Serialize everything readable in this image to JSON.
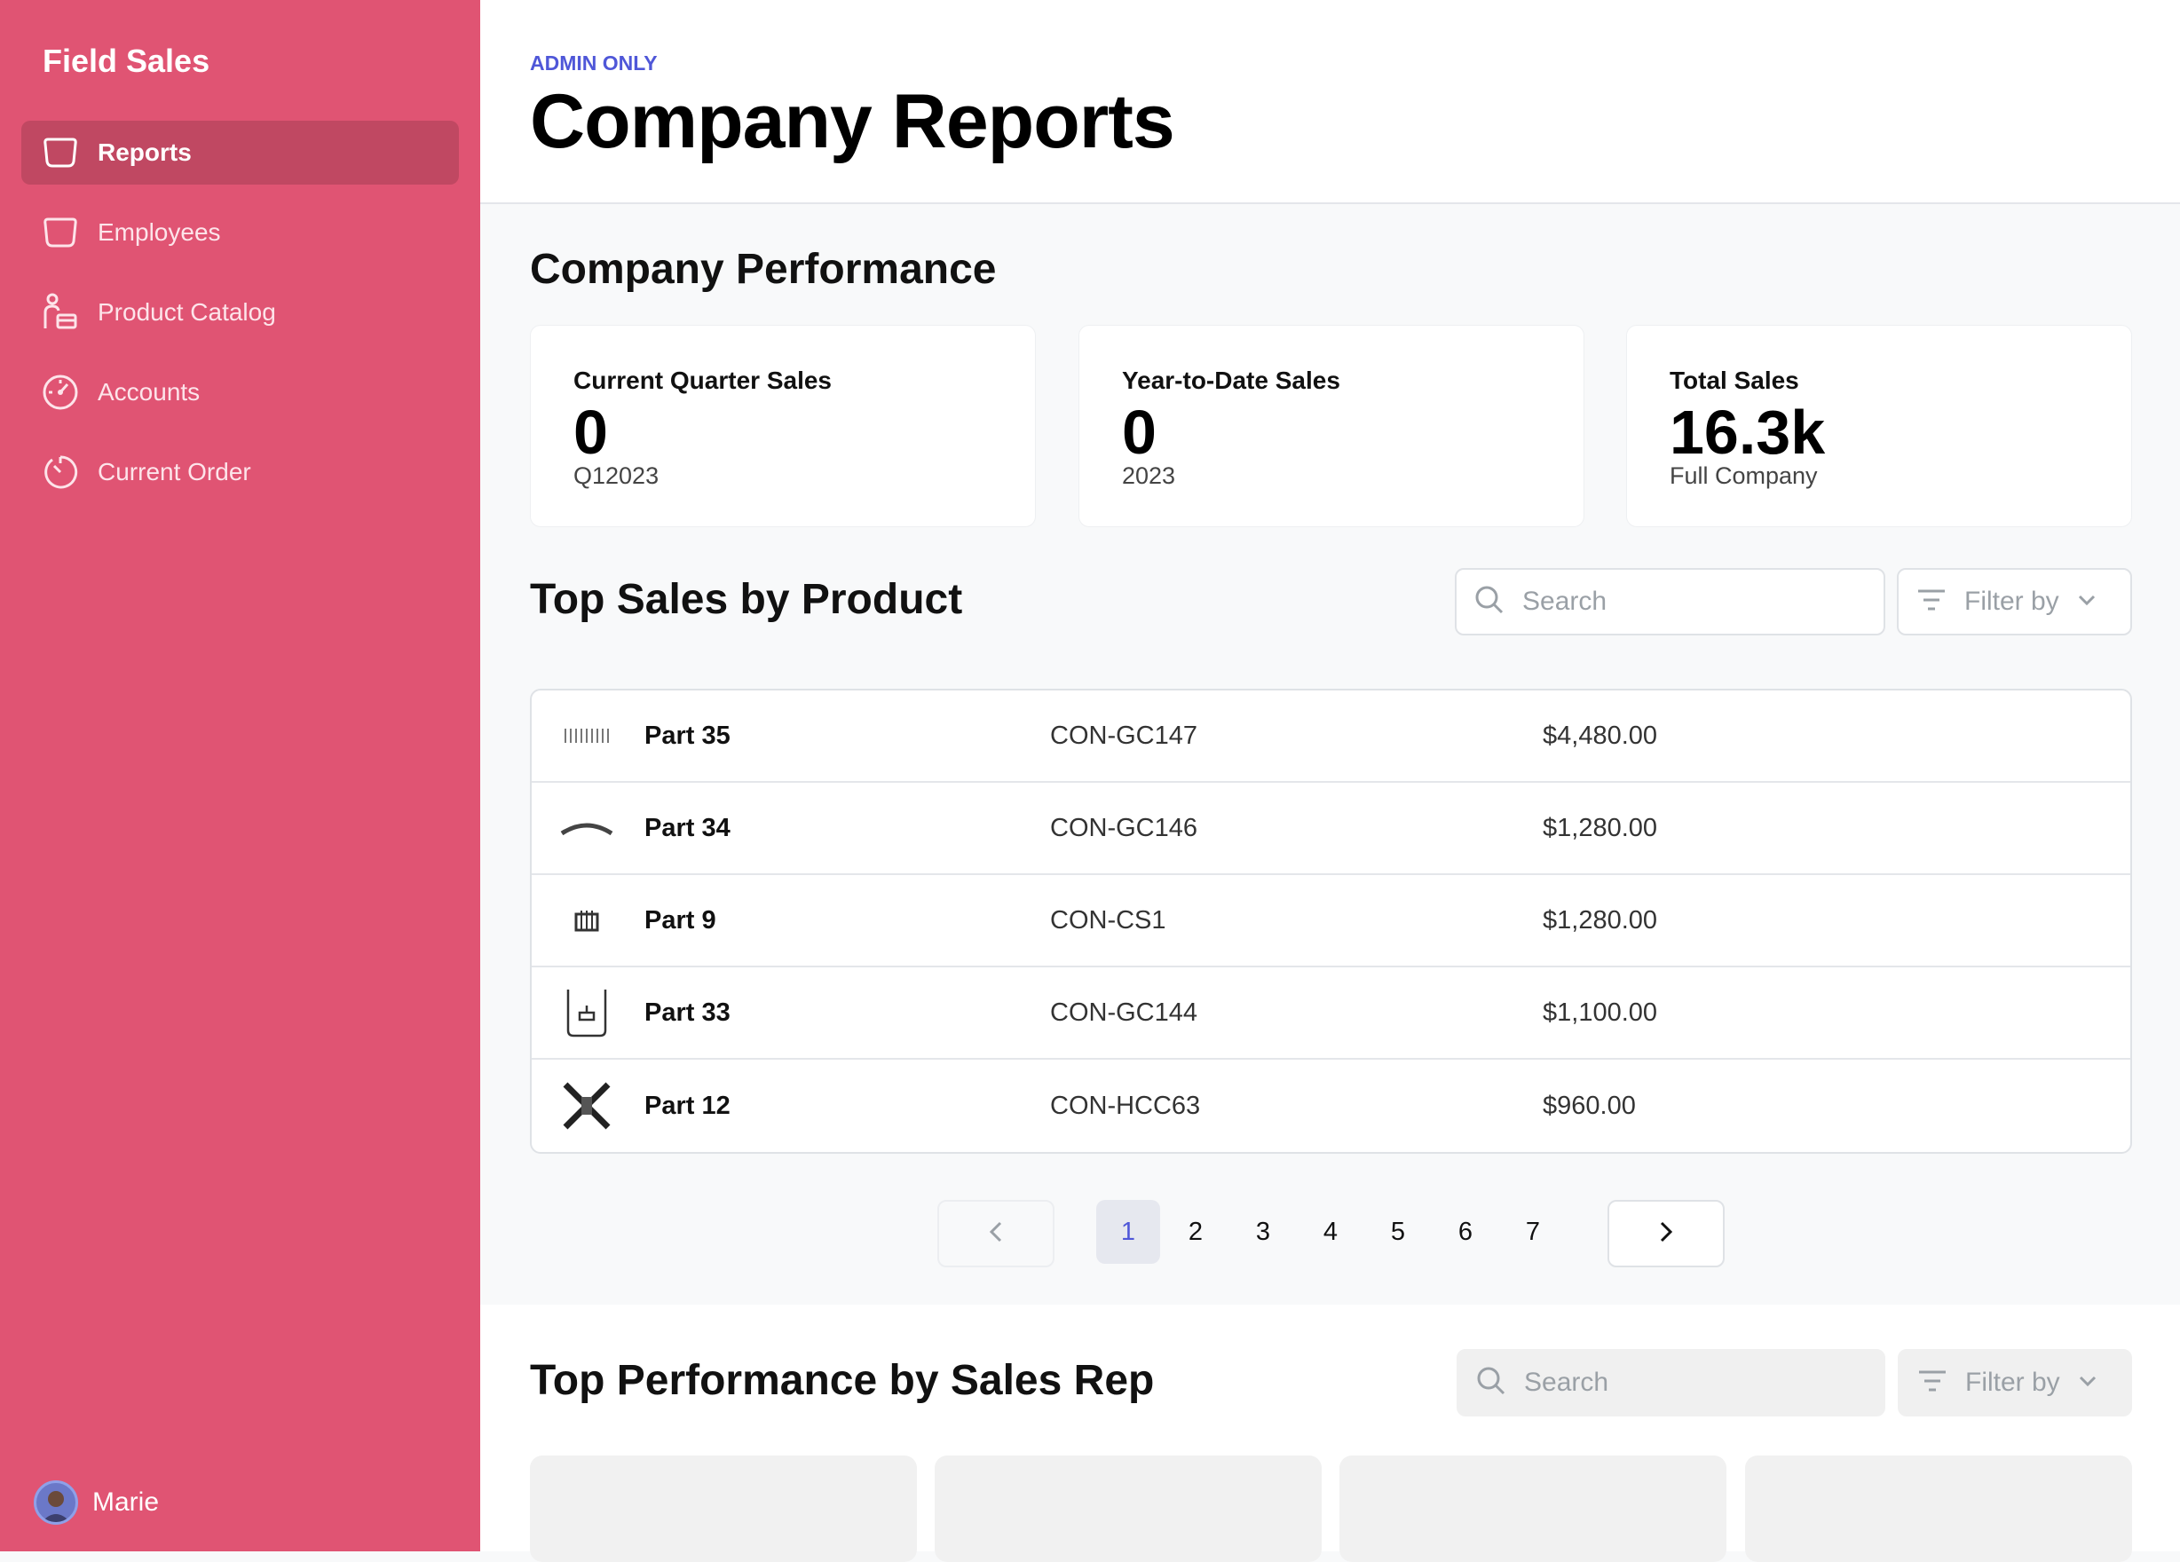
{
  "sidebar": {
    "app_title": "Field Sales",
    "items": [
      {
        "label": "Reports",
        "icon": "rounded-square-icon"
      },
      {
        "label": "Employees",
        "icon": "rounded-square-icon"
      },
      {
        "label": "Product Catalog",
        "icon": "person-card-icon"
      },
      {
        "label": "Accounts",
        "icon": "gauge-icon"
      },
      {
        "label": "Current Order",
        "icon": "timer-icon"
      }
    ],
    "user": {
      "name": "Marie"
    }
  },
  "header": {
    "eyebrow": "ADMIN ONLY",
    "title": "Company Reports"
  },
  "performance": {
    "title": "Company Performance",
    "cards": [
      {
        "label": "Current Quarter Sales",
        "value": "0",
        "sub": "Q12023"
      },
      {
        "label": "Year-to-Date Sales",
        "value": "0",
        "sub": "2023"
      },
      {
        "label": "Total Sales",
        "value": "16.3k",
        "sub": "Full Company"
      }
    ]
  },
  "products": {
    "title": "Top Sales by Product",
    "search_placeholder": "Search",
    "filter_label": "Filter by",
    "rows": [
      {
        "name": "Part 35",
        "sku": "CON-GC147",
        "price": "$4,480.00"
      },
      {
        "name": "Part 34",
        "sku": "CON-GC146",
        "price": "$1,280.00"
      },
      {
        "name": "Part 9",
        "sku": "CON-CS1",
        "price": "$1,280.00"
      },
      {
        "name": "Part 33",
        "sku": "CON-GC144",
        "price": "$1,100.00"
      },
      {
        "name": "Part 12",
        "sku": "CON-HCC63",
        "price": "$960.00"
      }
    ],
    "pagination": {
      "pages": [
        "1",
        "2",
        "3",
        "4",
        "5",
        "6",
        "7"
      ],
      "current": "1"
    }
  },
  "reps": {
    "title": "Top Performance by Sales Rep",
    "search_placeholder": "Search",
    "filter_label": "Filter by"
  },
  "colors": {
    "sidebar": "#e05473",
    "sidebar_active": "#c04862",
    "accent": "#4f57d8"
  }
}
